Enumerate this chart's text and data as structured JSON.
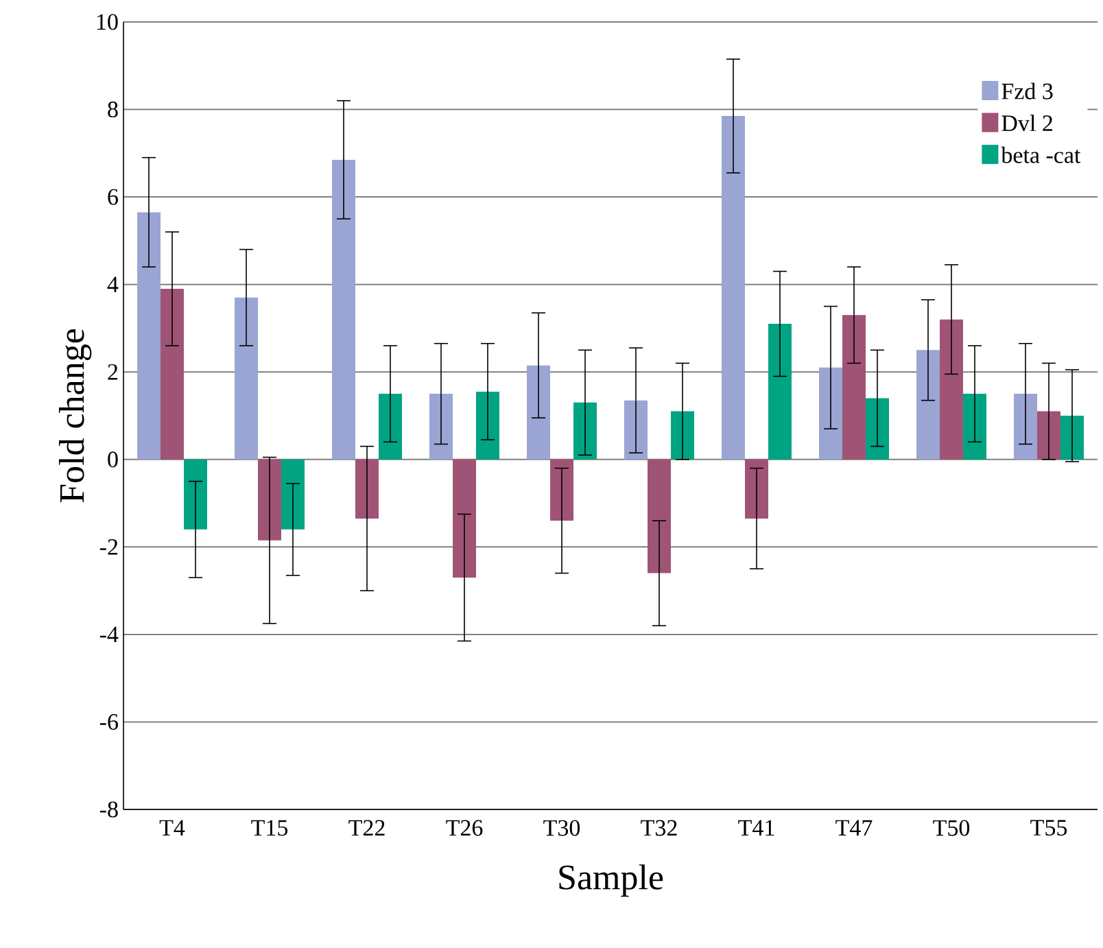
{
  "chart_data": {
    "type": "bar",
    "xlabel": "Sample",
    "ylabel": "Fold change",
    "categories": [
      "T4",
      "T15",
      "T22",
      "T26",
      "T30",
      "T32",
      "T41",
      "T47",
      "T50",
      "T55"
    ],
    "series": [
      {
        "name": "Fzd 3",
        "color": "#9aa5d3",
        "values": [
          5.65,
          3.7,
          6.85,
          1.5,
          2.15,
          1.35,
          7.85,
          2.1,
          2.5,
          1.5
        ],
        "errors": [
          1.25,
          1.1,
          1.35,
          1.15,
          1.2,
          1.2,
          1.3,
          1.4,
          1.15,
          1.15
        ]
      },
      {
        "name": "Dvl 2",
        "color": "#a05475",
        "values": [
          3.9,
          -1.85,
          -1.35,
          -2.7,
          -1.4,
          -2.6,
          -1.35,
          3.3,
          3.2,
          1.1
        ],
        "errors": [
          1.3,
          1.9,
          1.65,
          1.45,
          1.2,
          1.2,
          1.15,
          1.1,
          1.25,
          1.1
        ]
      },
      {
        "name": "beta -cat",
        "color": "#00a482",
        "values": [
          -1.6,
          -1.6,
          1.5,
          1.55,
          1.3,
          1.1,
          3.1,
          1.4,
          1.5,
          1.0
        ],
        "errors": [
          1.1,
          1.05,
          1.1,
          1.1,
          1.2,
          1.1,
          1.2,
          1.1,
          1.1,
          1.05
        ]
      }
    ],
    "ylim": [
      -8,
      10
    ],
    "yticks": [
      -8,
      -6,
      -4,
      -2,
      0,
      2,
      4,
      6,
      8,
      10
    ],
    "grid": "y",
    "legend": "top right"
  }
}
